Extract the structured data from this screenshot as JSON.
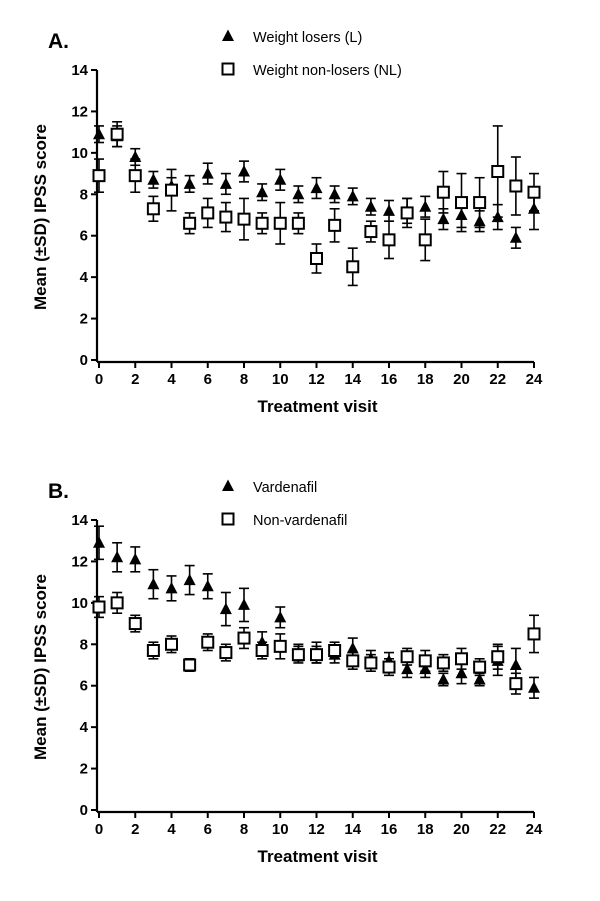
{
  "chart_data": [
    {
      "type": "scatter",
      "panel_label": "A.",
      "xlabel": "Treatment visit",
      "ylabel": "Mean (±SD) IPSS score",
      "xlim": [
        0,
        24
      ],
      "ylim": [
        0,
        14
      ],
      "xticks": [
        0,
        2,
        4,
        6,
        8,
        10,
        12,
        14,
        16,
        18,
        20,
        22,
        24
      ],
      "yticks": [
        0,
        2,
        4,
        6,
        8,
        10,
        12,
        14
      ],
      "grid": false,
      "legend_position": "top",
      "series": [
        {
          "name": "Weight losers (L)",
          "marker": "filled-triangle",
          "color": "#000000",
          "x": [
            0,
            1,
            2,
            3,
            4,
            5,
            6,
            7,
            8,
            9,
            10,
            11,
            12,
            13,
            14,
            15,
            16,
            17,
            18,
            19,
            20,
            21,
            22,
            23,
            24
          ],
          "y": [
            10.9,
            10.8,
            9.8,
            8.7,
            8.4,
            8.5,
            9.0,
            8.5,
            9.1,
            8.1,
            8.7,
            8.0,
            8.3,
            8.0,
            7.9,
            7.4,
            7.2,
            7.2,
            7.4,
            6.8,
            7.0,
            6.7,
            6.9,
            5.9,
            7.3
          ],
          "error": [
            0.4,
            0.5,
            0.4,
            0.4,
            0.4,
            0.4,
            0.5,
            0.5,
            0.5,
            0.4,
            0.5,
            0.4,
            0.5,
            0.4,
            0.4,
            0.4,
            0.5,
            0.6,
            0.5,
            0.5,
            0.6,
            0.5,
            0.6,
            0.5,
            1.0
          ]
        },
        {
          "name": "Weight non-losers (NL)",
          "marker": "open-square",
          "color": "#000000",
          "x": [
            0,
            1,
            2,
            3,
            4,
            5,
            6,
            7,
            8,
            9,
            10,
            11,
            12,
            13,
            14,
            15,
            16,
            17,
            18,
            19,
            20,
            21,
            22,
            23,
            24
          ],
          "y": [
            8.9,
            10.9,
            8.9,
            7.3,
            8.2,
            6.6,
            7.1,
            6.9,
            6.8,
            6.6,
            6.6,
            6.6,
            4.9,
            6.5,
            4.5,
            6.2,
            5.8,
            7.1,
            5.8,
            8.1,
            7.6,
            7.6,
            9.1,
            8.4,
            8.1
          ],
          "error": [
            0.8,
            0.6,
            0.8,
            0.6,
            1.0,
            0.5,
            0.7,
            0.7,
            1.0,
            0.5,
            1.0,
            0.5,
            0.7,
            0.8,
            0.9,
            0.5,
            0.9,
            0.7,
            1.0,
            1.0,
            1.4,
            1.2,
            2.2,
            1.4,
            0.9
          ]
        }
      ]
    },
    {
      "type": "scatter",
      "panel_label": "B.",
      "xlabel": "Treatment visit",
      "ylabel": "Mean (±SD) IPSS score",
      "xlim": [
        0,
        24
      ],
      "ylim": [
        0,
        14
      ],
      "xticks": [
        0,
        2,
        4,
        6,
        8,
        10,
        12,
        14,
        16,
        18,
        20,
        22,
        24
      ],
      "yticks": [
        0,
        2,
        4,
        6,
        8,
        10,
        12,
        14
      ],
      "grid": false,
      "legend_position": "top",
      "series": [
        {
          "name": "Vardenafil",
          "marker": "filled-triangle",
          "color": "#000000",
          "x": [
            0,
            1,
            2,
            3,
            4,
            5,
            6,
            7,
            8,
            9,
            10,
            11,
            12,
            13,
            14,
            15,
            16,
            17,
            18,
            19,
            20,
            21,
            22,
            23,
            24
          ],
          "y": [
            12.9,
            12.2,
            12.1,
            10.9,
            10.7,
            11.1,
            10.8,
            9.7,
            9.9,
            8.1,
            9.3,
            7.6,
            7.6,
            7.5,
            7.8,
            7.3,
            7.2,
            6.8,
            6.8,
            6.3,
            6.6,
            6.3,
            7.2,
            7.0,
            5.9
          ],
          "error": [
            0.8,
            0.7,
            0.6,
            0.7,
            0.6,
            0.7,
            0.6,
            0.8,
            0.8,
            0.5,
            0.5,
            0.4,
            0.5,
            0.4,
            0.5,
            0.4,
            0.4,
            0.4,
            0.4,
            0.3,
            0.5,
            0.3,
            0.7,
            0.8,
            0.5
          ]
        },
        {
          "name": "Non-vardenafil",
          "marker": "open-square",
          "color": "#000000",
          "x": [
            0,
            1,
            2,
            3,
            4,
            5,
            6,
            7,
            8,
            9,
            10,
            11,
            12,
            13,
            14,
            15,
            16,
            17,
            18,
            19,
            20,
            21,
            22,
            23,
            24
          ],
          "y": [
            9.8,
            10.0,
            9.0,
            7.7,
            8.0,
            7.0,
            8.1,
            7.6,
            8.3,
            7.7,
            7.9,
            7.5,
            7.5,
            7.7,
            7.2,
            7.1,
            6.9,
            7.4,
            7.2,
            7.1,
            7.3,
            6.9,
            7.4,
            6.1,
            8.5
          ],
          "error": [
            0.5,
            0.5,
            0.4,
            0.4,
            0.4,
            0.3,
            0.4,
            0.4,
            0.5,
            0.4,
            0.6,
            0.4,
            0.4,
            0.4,
            0.4,
            0.4,
            0.4,
            0.4,
            0.5,
            0.4,
            0.5,
            0.4,
            0.6,
            0.5,
            0.9
          ]
        }
      ]
    }
  ]
}
